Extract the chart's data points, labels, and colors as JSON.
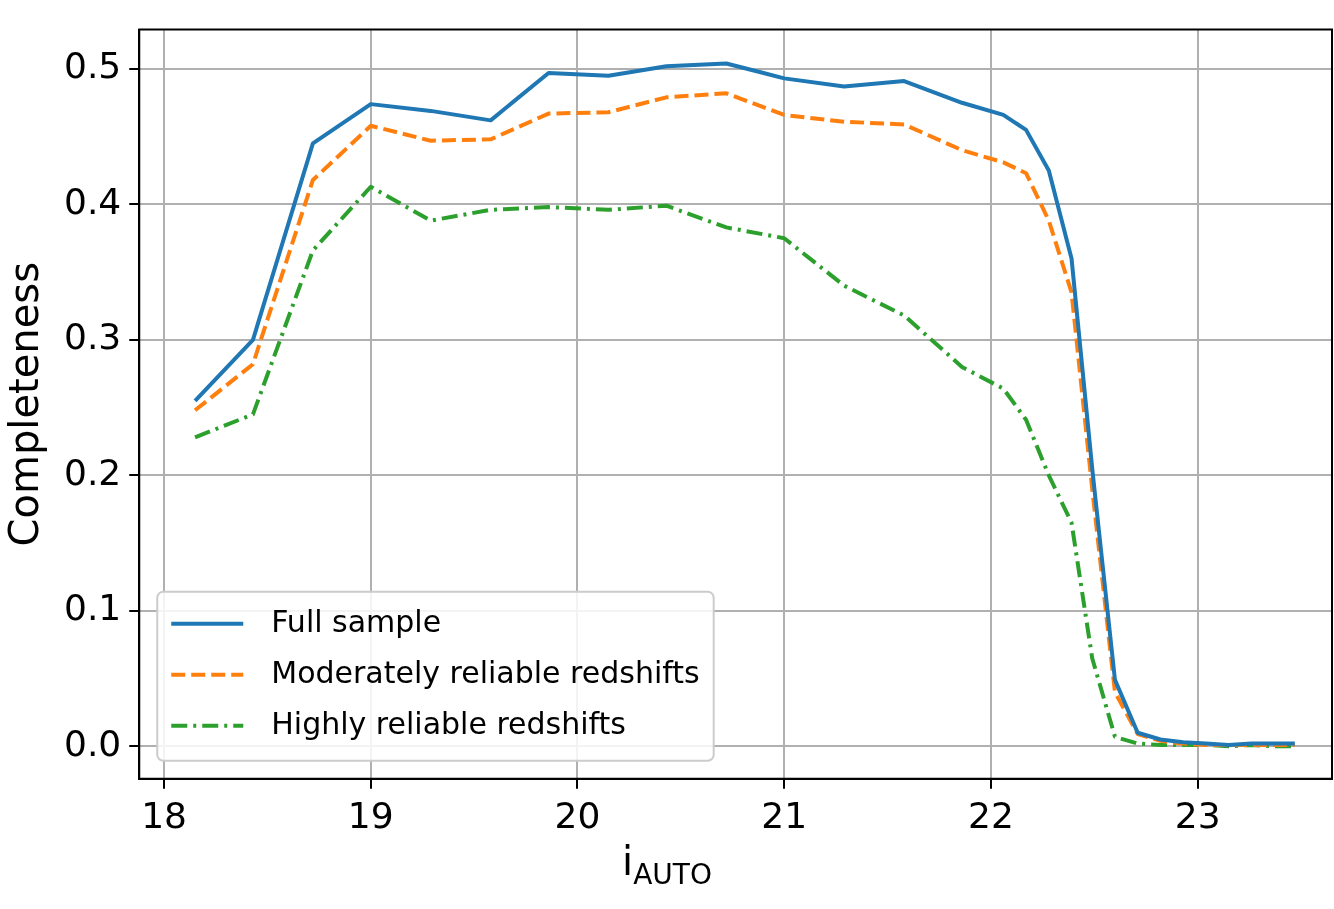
{
  "chart_data": {
    "type": "line",
    "xlabel": "i$_{AUTO}$",
    "ylabel": "Completeness",
    "x": [
      18.15,
      18.43,
      18.72,
      19.0,
      19.29,
      19.58,
      19.86,
      20.15,
      20.43,
      20.72,
      21.0,
      21.29,
      21.58,
      21.86,
      22.06,
      22.17,
      22.28,
      22.39,
      22.49,
      22.6,
      22.71,
      22.82,
      22.93,
      23.04,
      23.15,
      23.26,
      23.37,
      23.47
    ],
    "series": [
      {
        "name": "Full sample",
        "color": "#1f77b4",
        "line_style": "solid",
        "values": [
          0.255,
          0.3,
          0.445,
          0.474,
          0.469,
          0.462,
          0.497,
          0.495,
          0.502,
          0.504,
          0.493,
          0.487,
          0.491,
          0.475,
          0.466,
          0.455,
          0.425,
          0.36,
          0.205,
          0.049,
          0.01,
          0.005,
          0.003,
          0.002,
          0.001,
          0.002,
          0.002,
          0.002
        ]
      },
      {
        "name": "Moderately reliable redshifts",
        "color": "#ff7f0e",
        "line_style": "dashed",
        "values": [
          0.248,
          0.282,
          0.418,
          0.458,
          0.447,
          0.448,
          0.467,
          0.468,
          0.479,
          0.482,
          0.466,
          0.461,
          0.459,
          0.44,
          0.431,
          0.423,
          0.388,
          0.335,
          0.19,
          0.04,
          0.009,
          0.004,
          0.002,
          0.001,
          0.001,
          0.001,
          0.001,
          0.001
        ]
      },
      {
        "name": "Highly reliable redshifts",
        "color": "#2ca02c",
        "line_style": "dashdot",
        "values": [
          0.228,
          0.245,
          0.366,
          0.413,
          0.388,
          0.396,
          0.398,
          0.396,
          0.399,
          0.383,
          0.375,
          0.34,
          0.318,
          0.28,
          0.264,
          0.241,
          0.2,
          0.165,
          0.065,
          0.007,
          0.002,
          0.001,
          0.001,
          0.001,
          0.0,
          0.001,
          0.0,
          0.0
        ]
      }
    ],
    "xlim": [
      17.88,
      23.65
    ],
    "xticks": [
      18,
      19,
      20,
      21,
      22,
      23
    ],
    "ylim": [
      -0.024,
      0.529
    ],
    "yticks": [
      {
        "value": 0,
        "label": "0.0"
      },
      {
        "value": 0.1,
        "label": "0.1"
      },
      {
        "value": 0.2,
        "label": "0.2"
      },
      {
        "value": 0.3,
        "label": "0.3"
      },
      {
        "value": 0.4,
        "label": "0.4"
      },
      {
        "value": 0.5,
        "label": "0.5"
      }
    ],
    "grid": true,
    "legend": "bottom left"
  }
}
